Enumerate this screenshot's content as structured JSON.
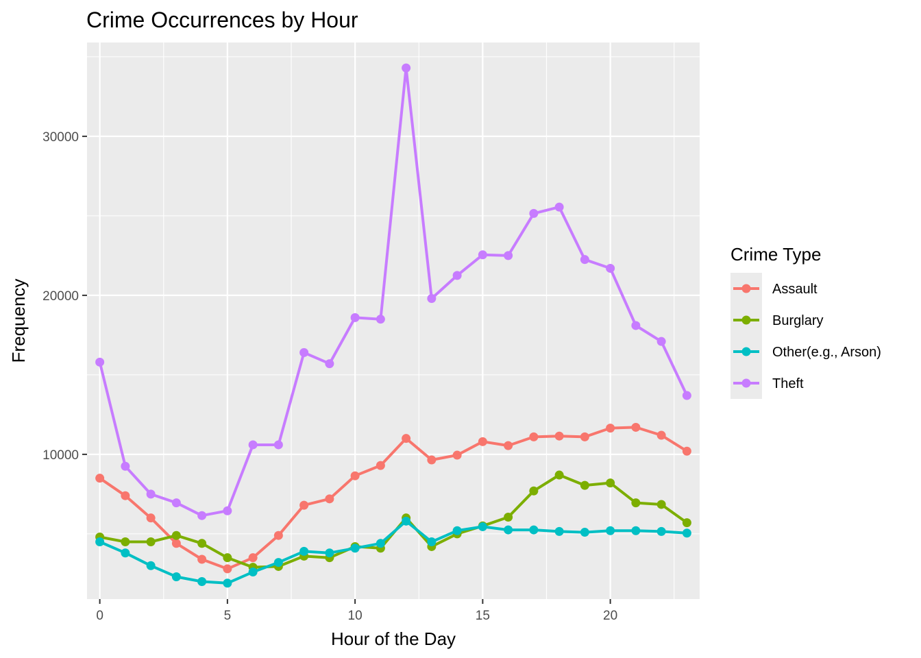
{
  "chart_data": {
    "type": "line",
    "title": "Crime Occurrences by Hour",
    "xlabel": "Hour of the Day",
    "ylabel": "Frequency",
    "x": [
      0,
      1,
      2,
      3,
      4,
      5,
      6,
      7,
      8,
      9,
      10,
      11,
      12,
      13,
      14,
      15,
      16,
      17,
      18,
      19,
      20,
      21,
      22,
      23
    ],
    "xlim": [
      -0.5,
      23.5
    ],
    "ylim": [
      900,
      35900
    ],
    "x_ticks": [
      0,
      5,
      10,
      15,
      20
    ],
    "y_ticks": [
      10000,
      20000,
      30000
    ],
    "x_tick_labels": [
      "0",
      "5",
      "10",
      "15",
      "20"
    ],
    "y_tick_labels": [
      "10000",
      "20000",
      "30000"
    ],
    "grid": true,
    "legend": {
      "title": "Crime Type",
      "position": "right"
    },
    "series": [
      {
        "name": "Assault",
        "color": "#F8766D",
        "values": [
          8500,
          7400,
          6000,
          4400,
          3400,
          2800,
          3500,
          4900,
          6800,
          7200,
          8650,
          9300,
          11000,
          9650,
          9950,
          10800,
          10550,
          11100,
          11150,
          11100,
          11650,
          11700,
          11200,
          10200
        ]
      },
      {
        "name": "Burglary",
        "color": "#7CAE00",
        "values": [
          4800,
          4500,
          4500,
          4900,
          4400,
          3500,
          2900,
          2950,
          3600,
          3500,
          4200,
          4100,
          6000,
          4200,
          5000,
          5500,
          6050,
          7700,
          8700,
          8050,
          8200,
          6950,
          6850,
          5700
        ]
      },
      {
        "name": "Other(e.g., Arson)",
        "color": "#00BFC4",
        "values": [
          4500,
          3800,
          3000,
          2300,
          2000,
          1900,
          2600,
          3200,
          3900,
          3800,
          4100,
          4400,
          5800,
          4500,
          5200,
          5450,
          5250,
          5250,
          5150,
          5100,
          5200,
          5200,
          5150,
          5050
        ]
      },
      {
        "name": "Theft",
        "color": "#C77CFF",
        "values": [
          15800,
          9250,
          7500,
          6950,
          6150,
          6450,
          10600,
          10600,
          16400,
          15700,
          18600,
          18500,
          34300,
          19800,
          21250,
          22550,
          22500,
          25150,
          25550,
          22250,
          21700,
          18100,
          17100,
          13700
        ]
      }
    ]
  }
}
